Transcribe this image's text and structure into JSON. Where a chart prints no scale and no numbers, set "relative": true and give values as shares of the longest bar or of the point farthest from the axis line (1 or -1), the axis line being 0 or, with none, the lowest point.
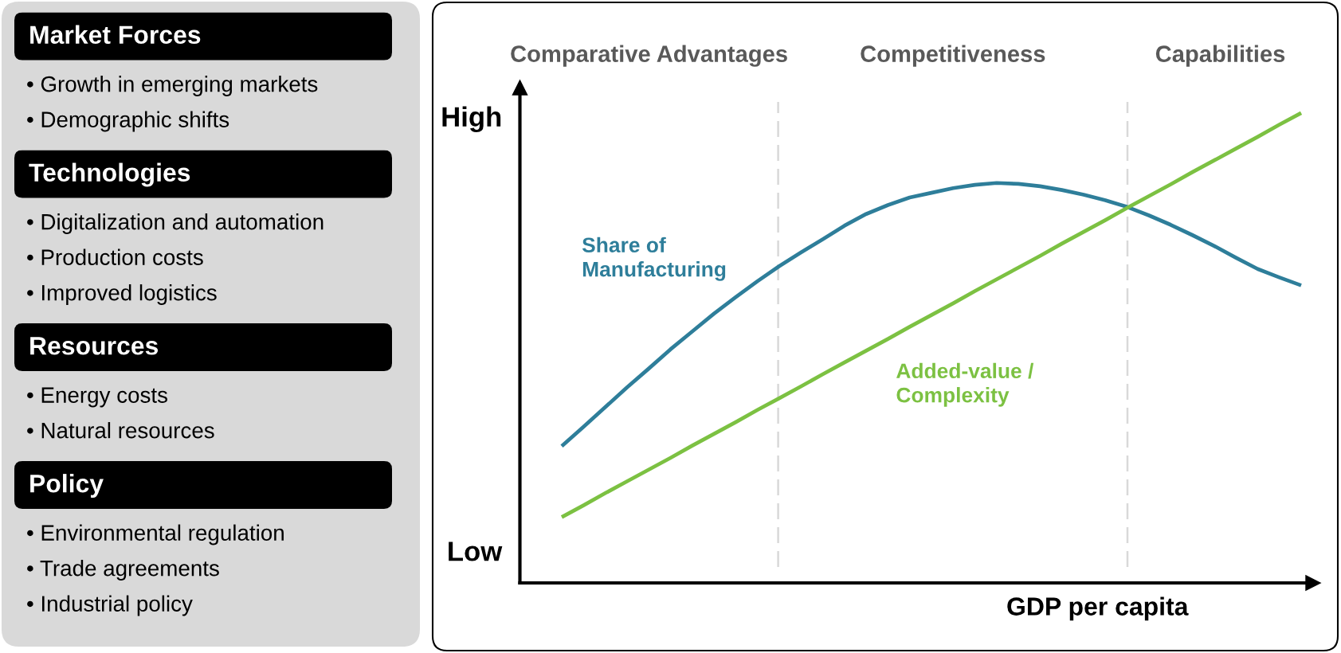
{
  "chart_data": [
    {
      "type": "other",
      "title": "Market Forces",
      "annotations": [
        "• Growth in emerging markets",
        "• Demographic shifts"
      ]
    },
    {
      "type": "other",
      "title": "Technologies",
      "annotations": [
        "• Digitalization and automation",
        "• Production costs",
        "• Improved logistics"
      ]
    },
    {
      "type": "other",
      "title": "Resources",
      "annotations": [
        "• Energy costs",
        "• Natural resources"
      ]
    },
    {
      "type": "other",
      "title": "Policy",
      "annotations": [
        "• Environmental regulation",
        "• Trade agreements",
        "• Industrial policy"
      ]
    },
    {
      "type": "line",
      "relative": true,
      "xlabel": "GDP per capita",
      "categories": [
        null,
        null,
        null,
        null,
        null,
        null,
        null,
        null,
        null,
        null,
        null,
        null,
        null,
        null,
        null,
        null,
        null,
        null,
        null,
        null,
        null,
        null,
        null,
        null,
        null,
        null,
        null,
        null,
        null,
        null,
        null,
        null,
        null,
        null,
        null
      ],
      "series": [
        {
          "name": "Share of\nManufacturing",
          "color": "#2e7e9a",
          "values": [
            0.291,
            0.332,
            0.374,
            0.416,
            0.456,
            0.497,
            0.535,
            0.573,
            0.608,
            0.642,
            0.674,
            0.703,
            0.731,
            0.76,
            0.785,
            0.804,
            0.82,
            0.83,
            0.84,
            0.847,
            0.851,
            0.849,
            0.844,
            0.836,
            0.826,
            0.814,
            0.8,
            0.782,
            0.762,
            0.74,
            0.717,
            0.692,
            0.668,
            0.65,
            0.633
          ]
        },
        {
          "name": "Added-value /\nComplexity",
          "color": "#7cc142",
          "values": [
            0.14,
            0.165,
            0.191,
            0.216,
            0.241,
            0.266,
            0.292,
            0.317,
            0.342,
            0.368,
            0.393,
            0.418,
            0.444,
            0.469,
            0.494,
            0.519,
            0.545,
            0.57,
            0.595,
            0.621,
            0.646,
            0.671,
            0.696,
            0.722,
            0.747,
            0.772,
            0.798,
            0.823,
            0.848,
            0.874,
            0.899,
            0.924,
            0.949,
            0.975,
            1
          ]
        }
      ],
      "annotations": [
        "Comparative Advantages",
        "Competitiveness",
        "Capabilities",
        "High",
        "Low"
      ]
    }
  ]
}
